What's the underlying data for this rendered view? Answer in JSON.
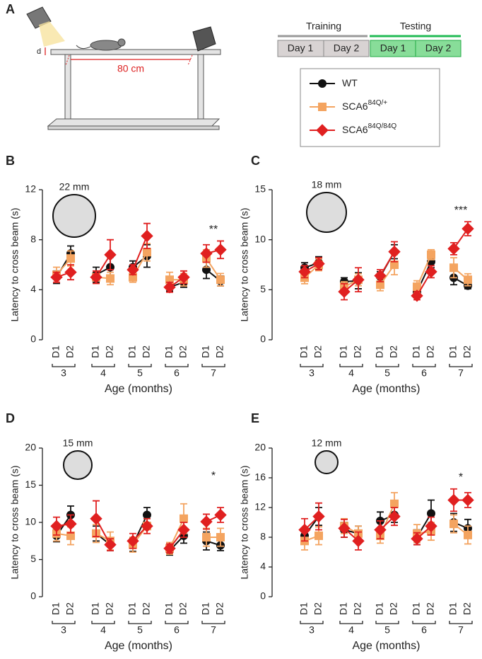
{
  "panel_a": {
    "label": "A",
    "d_label": "d",
    "distance": "80 cm",
    "training": "Training",
    "testing": "Testing",
    "days": [
      "Day 1",
      "Day 2",
      "Day 1",
      "Day 2"
    ]
  },
  "chart_data": [
    {
      "type": "line",
      "panel": "B",
      "beam": "22 mm",
      "y_label": "Latency to cross beam (s)",
      "x_label": "Age (months)",
      "annotation": "**",
      "categories": [
        "D1",
        "D2",
        "D1",
        "D2",
        "D1",
        "D2",
        "D1",
        "D2",
        "D1",
        "D2"
      ],
      "groups": [
        "3",
        "4",
        "5",
        "6",
        "7"
      ],
      "ylim": [
        0,
        12
      ],
      "yticks": [
        0,
        4,
        8,
        12
      ],
      "series": [
        {
          "name": "WT",
          "color": "#111111",
          "marker": "circle",
          "values": [
            5.0,
            6.9,
            5.2,
            5.8,
            5.8,
            6.7,
            4.2,
            4.6,
            5.6,
            4.7
          ],
          "errors": [
            0.5,
            0.6,
            0.6,
            0.8,
            0.5,
            0.9,
            0.3,
            0.4,
            0.7,
            0.4
          ]
        },
        {
          "name": "SCA6",
          "superscript": "84Q/+",
          "color": "#f4a460",
          "marker": "square",
          "values": [
            5.2,
            6.5,
            5.0,
            4.9,
            5.0,
            7.0,
            4.8,
            4.8,
            6.5,
            4.8
          ],
          "errors": [
            0.6,
            0.6,
            0.5,
            0.5,
            0.4,
            0.7,
            0.6,
            0.5,
            0.7,
            0.5
          ]
        },
        {
          "name": "SCA6",
          "superscript": "84Q/84Q",
          "color": "#e02020",
          "marker": "diamond",
          "values": [
            5.0,
            5.4,
            5.0,
            6.8,
            5.6,
            8.3,
            4.2,
            5.0,
            6.9,
            7.2
          ],
          "errors": [
            0.4,
            0.6,
            0.5,
            1.2,
            0.4,
            1.0,
            0.4,
            0.5,
            0.7,
            0.7
          ]
        }
      ]
    },
    {
      "type": "line",
      "panel": "C",
      "beam": "18 mm",
      "y_label": "Latency to cross beam (s)",
      "x_label": "Age (months)",
      "annotation": "***",
      "categories": [
        "D1",
        "D2",
        "D1",
        "D2",
        "D1",
        "D2",
        "D1",
        "D2",
        "D1",
        "D2"
      ],
      "groups": [
        "3",
        "4",
        "5",
        "6",
        "7"
      ],
      "ylim": [
        0,
        15
      ],
      "yticks": [
        0,
        5,
        10,
        15
      ],
      "series": [
        {
          "name": "WT",
          "color": "#111111",
          "marker": "circle",
          "values": [
            7.2,
            7.7,
            5.8,
            5.9,
            6.3,
            8.8,
            4.8,
            7.8,
            6.2,
            5.4
          ],
          "errors": [
            0.5,
            0.6,
            0.4,
            0.8,
            0.5,
            0.7,
            0.5,
            0.6,
            0.7,
            0.3
          ]
        },
        {
          "name": "SCA6",
          "superscript": "84Q/+",
          "color": "#f4a460",
          "marker": "square",
          "values": [
            6.2,
            7.5,
            5.3,
            6.0,
            5.5,
            7.5,
            5.3,
            8.5,
            7.2,
            6.0
          ],
          "errors": [
            0.6,
            0.6,
            0.5,
            0.6,
            0.6,
            1.0,
            0.6,
            0.5,
            1.0,
            0.6
          ]
        },
        {
          "name": "SCA6",
          "superscript": "84Q/84Q",
          "color": "#e02020",
          "marker": "diamond",
          "values": [
            6.8,
            7.6,
            4.8,
            6.0,
            6.4,
            8.8,
            4.4,
            6.8,
            9.1,
            11.1
          ],
          "errors": [
            0.6,
            0.6,
            0.8,
            1.2,
            0.6,
            1.0,
            0.4,
            0.6,
            0.6,
            0.7
          ]
        }
      ]
    },
    {
      "type": "line",
      "panel": "D",
      "beam": "15 mm",
      "y_label": "Latency to cross beam (s)",
      "x_label": "Age (months)",
      "annotation": "*",
      "categories": [
        "D1",
        "D2",
        "D1",
        "D2",
        "D1",
        "D2",
        "D1",
        "D2",
        "D1",
        "D2"
      ],
      "groups": [
        "3",
        "4",
        "5",
        "6",
        "7"
      ],
      "ylim": [
        0,
        20
      ],
      "yticks": [
        0,
        5,
        10,
        15,
        20
      ],
      "series": [
        {
          "name": "WT",
          "color": "#111111",
          "marker": "circle",
          "values": [
            8.2,
            11.0,
            8.5,
            7.0,
            7.0,
            11.0,
            6.2,
            8.2,
            7.5,
            6.9
          ],
          "errors": [
            0.8,
            1.2,
            1.0,
            0.8,
            0.9,
            1.0,
            0.6,
            1.0,
            1.2,
            0.7
          ]
        },
        {
          "name": "SCA6",
          "superscript": "84Q/+",
          "color": "#f4a460",
          "marker": "square",
          "values": [
            8.5,
            8.2,
            8.5,
            7.5,
            7.0,
            9.5,
            6.5,
            10.5,
            8.0,
            8.0
          ],
          "errors": [
            1.0,
            1.2,
            1.2,
            1.2,
            1.0,
            1.0,
            0.8,
            2.0,
            1.2,
            1.2
          ]
        },
        {
          "name": "SCA6",
          "superscript": "84Q/84Q",
          "color": "#e02020",
          "marker": "diamond",
          "values": [
            9.5,
            9.8,
            10.5,
            7.0,
            7.5,
            9.5,
            6.5,
            9.0,
            10.1,
            11.0
          ],
          "errors": [
            1.2,
            1.2,
            2.4,
            0.8,
            1.0,
            1.0,
            0.6,
            1.0,
            1.0,
            1.0
          ]
        }
      ]
    },
    {
      "type": "line",
      "panel": "E",
      "beam": "12 mm",
      "y_label": "Latency to cross beam (s)",
      "x_label": "Age (months)",
      "annotation": "*",
      "categories": [
        "D1",
        "D2",
        "D1",
        "D2",
        "D1",
        "D2",
        "D1",
        "D2",
        "D1",
        "D2"
      ],
      "groups": [
        "3",
        "4",
        "5",
        "6",
        "7"
      ],
      "ylim": [
        0,
        20
      ],
      "yticks": [
        0,
        4,
        8,
        12,
        16,
        20
      ],
      "series": [
        {
          "name": "WT",
          "color": "#111111",
          "marker": "circle",
          "values": [
            8.2,
            10.8,
            9.0,
            8.5,
            10.2,
            11.0,
            8.0,
            11.2,
            10.0,
            9.2
          ],
          "errors": [
            1.0,
            1.2,
            1.0,
            1.0,
            1.2,
            1.0,
            1.0,
            1.8,
            1.2,
            1.2
          ]
        },
        {
          "name": "SCA6",
          "superscript": "84Q/+",
          "color": "#f4a460",
          "marker": "square",
          "values": [
            7.5,
            8.2,
            9.5,
            8.5,
            8.2,
            12.5,
            8.5,
            8.8,
            9.8,
            8.3
          ],
          "errors": [
            1.2,
            1.2,
            1.0,
            1.0,
            1.0,
            1.5,
            1.2,
            1.2,
            1.2,
            1.2
          ]
        },
        {
          "name": "SCA6",
          "superscript": "84Q/84Q",
          "color": "#e02020",
          "marker": "diamond",
          "values": [
            9.0,
            10.8,
            9.2,
            7.5,
            9.0,
            10.8,
            7.8,
            9.5,
            13.0,
            13.0
          ],
          "errors": [
            1.5,
            1.8,
            1.2,
            1.2,
            1.2,
            1.2,
            0.8,
            1.2,
            1.5,
            1.0
          ]
        }
      ]
    }
  ]
}
